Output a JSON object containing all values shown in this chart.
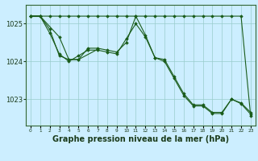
{
  "bg_color": "#cceeff",
  "grid_color": "#99cccc",
  "line_color": "#1a5c1a",
  "marker_color": "#1a5c1a",
  "xlabel": "Graphe pression niveau de la mer (hPa)",
  "xlabel_fontsize": 7,
  "yticks": [
    1023,
    1024,
    1025
  ],
  "xlim": [
    -0.5,
    23.5
  ],
  "ylim": [
    1022.3,
    1025.5
  ],
  "hours": [
    0,
    1,
    2,
    3,
    4,
    5,
    6,
    7,
    8,
    9,
    10,
    11,
    12,
    13,
    14,
    15,
    16,
    17,
    18,
    19,
    20,
    21,
    22,
    23
  ],
  "series": [
    [
      1025.2,
      1025.2,
      1025.2,
      1025.2,
      1025.2,
      1025.2,
      1025.2,
      1025.2,
      1025.2,
      1025.2,
      1025.2,
      1025.2,
      1025.2,
      1025.2,
      1025.2,
      1025.2,
      1025.2,
      1025.2,
      1025.2,
      1025.2,
      1025.2,
      1025.2,
      1025.2,
      1022.55
    ],
    [
      1025.2,
      1025.2,
      1024.85,
      1024.15,
      1024.05,
      1024.05,
      1024.35,
      1024.35,
      1024.3,
      1024.25,
      1024.5,
      1025.2,
      1024.7,
      1024.1,
      1024.05,
      1023.6,
      1023.15,
      1022.85,
      1022.85,
      1022.65,
      1022.65,
      1023.0,
      1022.9,
      1022.65
    ],
    [
      1025.2,
      1025.2,
      1024.75,
      1024.2,
      1024.0,
      1024.15,
      1024.3,
      1024.3,
      1024.25,
      1024.2,
      1024.6,
      1025.0,
      1024.65,
      1024.1,
      1024.0,
      1023.55,
      1023.1,
      1022.82,
      1022.82,
      1022.62,
      1022.62,
      1023.0,
      1022.88,
      1022.6
    ],
    [
      1025.2,
      1025.2,
      null,
      1024.65,
      1024.05,
      1024.05,
      null,
      1024.32,
      null,
      null,
      null,
      null,
      null,
      null,
      null,
      null,
      null,
      null,
      null,
      null,
      null,
      null,
      null,
      null
    ],
    [
      1025.2,
      1025.2,
      null,
      null,
      null,
      null,
      null,
      null,
      null,
      null,
      null,
      null,
      null,
      null,
      null,
      null,
      null,
      null,
      null,
      null,
      null,
      null,
      null,
      null
    ]
  ]
}
